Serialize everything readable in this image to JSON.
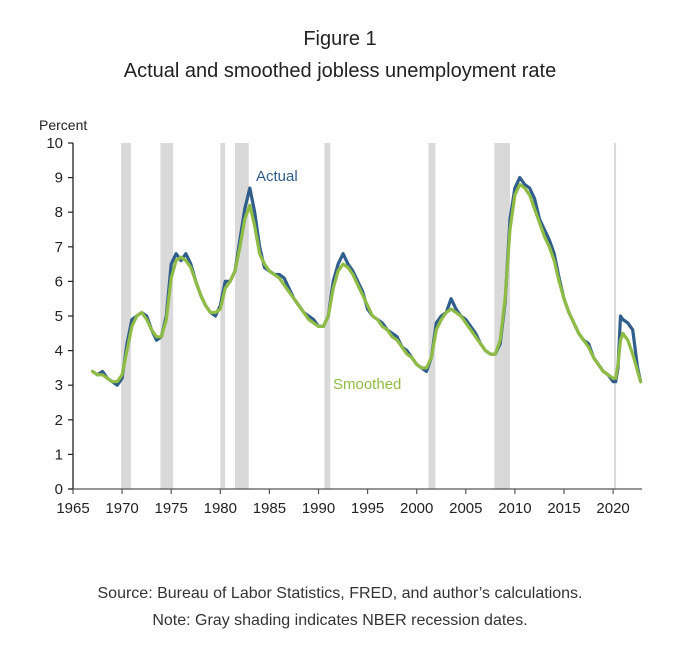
{
  "figure": {
    "number": "Figure 1",
    "title": "Actual and smoothed jobless unemployment rate",
    "source": "Source: Bureau of Labor Statistics, FRED, and author’s calculations.",
    "note": "Note: Gray shading indicates NBER recession dates."
  },
  "colors": {
    "actual": "#2f5d8c",
    "smoothed": "#8fbc45",
    "recession": "#d9d9d9",
    "axis": "#222222"
  },
  "chart_data": {
    "type": "line",
    "title": "Actual and smoothed jobless unemployment rate",
    "xlabel": "",
    "ylabel": "Percent",
    "xlim": [
      1965,
      2023
    ],
    "ylim": [
      0,
      10
    ],
    "xticks": [
      1965,
      1970,
      1975,
      1980,
      1985,
      1990,
      1995,
      2000,
      2005,
      2010,
      2015,
      2020
    ],
    "yticks": [
      0,
      1,
      2,
      3,
      4,
      5,
      6,
      7,
      8,
      9,
      10
    ],
    "grid": false,
    "legend": "inline labels",
    "annotations": [
      {
        "text": "Actual",
        "x": 1983.8,
        "y": 9.0,
        "series": "Actual"
      },
      {
        "text": "Smoothed",
        "x": 1991.2,
        "y": 3.0,
        "series": "Smoothed"
      }
    ],
    "recessions": [
      [
        1969.9,
        1970.9
      ],
      [
        1973.9,
        1975.2
      ],
      [
        1980.0,
        1980.5
      ],
      [
        1981.5,
        1982.9
      ],
      [
        1990.6,
        1991.2
      ],
      [
        2001.2,
        2001.9
      ],
      [
        2007.9,
        2009.5
      ],
      [
        2020.1,
        2020.3
      ]
    ],
    "x": [
      1967.0,
      1967.5,
      1968.0,
      1968.5,
      1969.0,
      1969.5,
      1970.0,
      1970.5,
      1971.0,
      1971.5,
      1972.0,
      1972.5,
      1973.0,
      1973.5,
      1974.0,
      1974.5,
      1975.0,
      1975.5,
      1976.0,
      1976.5,
      1977.0,
      1977.5,
      1978.0,
      1978.5,
      1979.0,
      1979.5,
      1980.0,
      1980.5,
      1981.0,
      1981.5,
      1982.0,
      1982.5,
      1983.0,
      1983.5,
      1984.0,
      1984.5,
      1985.0,
      1985.5,
      1986.0,
      1986.5,
      1987.0,
      1987.5,
      1988.0,
      1988.5,
      1989.0,
      1989.5,
      1990.0,
      1990.5,
      1991.0,
      1991.5,
      1992.0,
      1992.5,
      1993.0,
      1993.5,
      1994.0,
      1994.5,
      1995.0,
      1995.5,
      1996.0,
      1996.5,
      1997.0,
      1997.5,
      1998.0,
      1998.5,
      1999.0,
      1999.5,
      2000.0,
      2000.5,
      2001.0,
      2001.5,
      2002.0,
      2002.5,
      2003.0,
      2003.5,
      2004.0,
      2004.5,
      2005.0,
      2005.5,
      2006.0,
      2006.5,
      2007.0,
      2007.5,
      2008.0,
      2008.5,
      2009.0,
      2009.5,
      2010.0,
      2010.5,
      2011.0,
      2011.5,
      2012.0,
      2012.5,
      2013.0,
      2013.5,
      2014.0,
      2014.5,
      2015.0,
      2015.5,
      2016.0,
      2016.5,
      2017.0,
      2017.5,
      2018.0,
      2018.5,
      2019.0,
      2019.5,
      2020.0,
      2020.25,
      2020.5,
      2020.75,
      2021.0,
      2021.5,
      2022.0,
      2022.5,
      2022.8
    ],
    "series": [
      {
        "name": "Actual",
        "values": [
          3.4,
          3.3,
          3.4,
          3.2,
          3.1,
          3.0,
          3.2,
          4.2,
          4.9,
          5.0,
          5.1,
          5.0,
          4.6,
          4.3,
          4.4,
          5.0,
          6.5,
          6.8,
          6.6,
          6.8,
          6.5,
          6.0,
          5.6,
          5.3,
          5.1,
          5.0,
          5.3,
          6.0,
          6.0,
          6.3,
          7.2,
          8.1,
          8.7,
          8.0,
          7.0,
          6.4,
          6.3,
          6.2,
          6.2,
          6.1,
          5.8,
          5.5,
          5.3,
          5.1,
          5.0,
          4.9,
          4.7,
          4.7,
          5.0,
          6.0,
          6.5,
          6.8,
          6.5,
          6.3,
          6.0,
          5.7,
          5.2,
          5.0,
          4.9,
          4.8,
          4.6,
          4.5,
          4.4,
          4.1,
          4.0,
          3.8,
          3.6,
          3.5,
          3.4,
          3.8,
          4.8,
          5.0,
          5.1,
          5.5,
          5.2,
          5.0,
          4.9,
          4.7,
          4.5,
          4.2,
          4.0,
          3.9,
          3.9,
          4.2,
          5.4,
          7.8,
          8.7,
          9.0,
          8.8,
          8.7,
          8.4,
          7.8,
          7.5,
          7.2,
          6.8,
          6.1,
          5.5,
          5.1,
          4.8,
          4.5,
          4.3,
          4.2,
          3.8,
          3.6,
          3.4,
          3.3,
          3.1,
          3.1,
          3.5,
          5.0,
          4.9,
          4.8,
          4.6,
          3.5,
          3.1,
          3.0,
          3.1
        ]
      },
      {
        "name": "Smoothed",
        "values": [
          3.4,
          3.3,
          3.3,
          3.2,
          3.1,
          3.1,
          3.3,
          4.0,
          4.7,
          5.0,
          5.1,
          4.9,
          4.6,
          4.4,
          4.4,
          4.9,
          6.1,
          6.6,
          6.7,
          6.6,
          6.4,
          6.0,
          5.6,
          5.3,
          5.1,
          5.1,
          5.2,
          5.8,
          6.0,
          6.3,
          7.0,
          7.8,
          8.2,
          7.6,
          6.8,
          6.5,
          6.3,
          6.2,
          6.1,
          5.9,
          5.7,
          5.5,
          5.3,
          5.1,
          4.9,
          4.8,
          4.7,
          4.7,
          5.0,
          5.8,
          6.3,
          6.5,
          6.4,
          6.2,
          5.9,
          5.6,
          5.3,
          5.0,
          4.9,
          4.7,
          4.6,
          4.4,
          4.3,
          4.1,
          3.9,
          3.8,
          3.6,
          3.5,
          3.5,
          3.8,
          4.6,
          4.9,
          5.1,
          5.2,
          5.1,
          5.0,
          4.8,
          4.6,
          4.4,
          4.2,
          4.0,
          3.9,
          3.9,
          4.3,
          5.5,
          7.5,
          8.5,
          8.8,
          8.7,
          8.5,
          8.1,
          7.7,
          7.3,
          7.0,
          6.6,
          6.0,
          5.5,
          5.1,
          4.8,
          4.5,
          4.3,
          4.1,
          3.8,
          3.6,
          3.4,
          3.3,
          3.2,
          3.2,
          3.6,
          4.3,
          4.5,
          4.3,
          3.9,
          3.4,
          3.1,
          2.9,
          2.85
        ]
      }
    ]
  }
}
